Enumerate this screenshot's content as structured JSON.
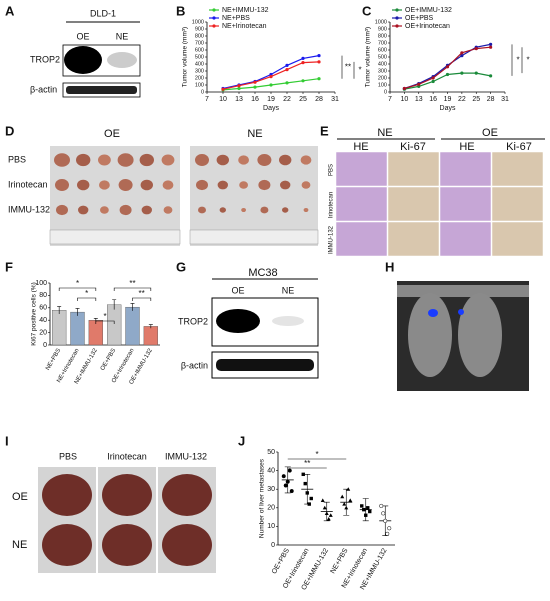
{
  "panel_letters": [
    "A",
    "B",
    "C",
    "D",
    "E",
    "F",
    "G",
    "H",
    "I",
    "J"
  ],
  "blot_a": {
    "header": "DLD-1",
    "lanes": [
      "OE",
      "NE"
    ],
    "rows": [
      "TROP2",
      "β-actin"
    ]
  },
  "panel_d": {
    "groups": [
      "OE",
      "NE"
    ],
    "rows": [
      "PBS",
      "Irinotecan",
      "IMMU-132"
    ]
  },
  "panel_e": {
    "groups": [
      "NE",
      "OE"
    ],
    "stains": [
      "HE",
      "Ki-67",
      "HE",
      "Ki-67"
    ],
    "rows": [
      "PBS",
      "Irinotecan",
      "IMMU-132"
    ]
  },
  "blot_g": {
    "header": "MC38",
    "lanes": [
      "OE",
      "NE"
    ],
    "rows": [
      "TROP2",
      "β-actin"
    ]
  },
  "panel_i": {
    "columns": [
      "PBS",
      "Irinotecan",
      "IMMU-132"
    ],
    "rows": [
      "OE",
      "NE"
    ]
  },
  "chart_data": [
    {
      "type": "line",
      "x_label": "Days",
      "y_label": "Tumor volume (mm³)",
      "x": [
        10,
        13,
        16,
        19,
        22,
        25,
        28
      ],
      "xlim": [
        7,
        31
      ],
      "xticks": [
        7,
        10,
        13,
        16,
        19,
        22,
        25,
        28,
        31
      ],
      "ylim": [
        0,
        1000
      ],
      "yticks": [
        0,
        100,
        200,
        300,
        400,
        500,
        600,
        700,
        800,
        900,
        1000
      ],
      "series": [
        {
          "name": "NE+IMMU-132",
          "color": "#33cc33",
          "values": [
            30,
            50,
            70,
            100,
            130,
            160,
            190
          ]
        },
        {
          "name": "NE+PBS",
          "color": "#1a1aee",
          "values": [
            50,
            100,
            150,
            250,
            380,
            480,
            520
          ]
        },
        {
          "name": "NE+Irinotecan",
          "color": "#ee2222",
          "values": [
            40,
            90,
            140,
            220,
            320,
            420,
            430
          ]
        }
      ],
      "annotations": [
        "**",
        "*"
      ]
    },
    {
      "type": "line",
      "x_label": "Days",
      "y_label": "Tumor volume (mm³)",
      "x": [
        10,
        13,
        16,
        19,
        22,
        25,
        28
      ],
      "xlim": [
        7,
        31
      ],
      "xticks": [
        7,
        10,
        13,
        16,
        19,
        22,
        25,
        28,
        31
      ],
      "ylim": [
        0,
        1000
      ],
      "yticks": [
        0,
        100,
        200,
        300,
        400,
        500,
        600,
        700,
        800,
        900,
        1000
      ],
      "series": [
        {
          "name": "OE+IMMU-132",
          "color": "#1a8a3a",
          "values": [
            40,
            80,
            150,
            250,
            270,
            270,
            230
          ]
        },
        {
          "name": "OE+PBS",
          "color": "#1a1aaa",
          "values": [
            50,
            120,
            220,
            380,
            520,
            640,
            680
          ]
        },
        {
          "name": "OE+Irinotecan",
          "color": "#aa1122",
          "values": [
            50,
            110,
            200,
            360,
            560,
            620,
            640
          ]
        }
      ],
      "annotations": [
        "*",
        "*"
      ]
    },
    {
      "type": "bar",
      "y_label": "Ki67 positive cells (%)",
      "categories": [
        "NE+PBS",
        "NE+Irinotecan",
        "NE+IMMU-132",
        "OE+PBS",
        "OE+Irinotecan",
        "OE+IMMU-132"
      ],
      "values": [
        56,
        53,
        40,
        65,
        61,
        30
      ],
      "errors": [
        6,
        6,
        3,
        8,
        6,
        3
      ],
      "colors": [
        "#c8c8c8",
        "#8fa9c8",
        "#e07a6a",
        "#c8c8c8",
        "#8fa9c8",
        "#e07a6a"
      ],
      "ylim": [
        0,
        100
      ],
      "yticks": [
        0,
        20,
        40,
        60,
        80,
        100
      ],
      "annotations": [
        "*",
        "*",
        "**",
        "**",
        "*"
      ]
    },
    {
      "type": "dot",
      "y_label": "Number of liver metastases",
      "categories": [
        "OE+PBS",
        "OE+Irinotecan",
        "OE+IMMU-132",
        "NE+PBS",
        "NE+Irinotecan",
        "NE+IMMU-132"
      ],
      "values": [
        35,
        30,
        18,
        23,
        19,
        13
      ],
      "errors": [
        7,
        8,
        5,
        7,
        6,
        8
      ],
      "points": [
        [
          37,
          32,
          34,
          40,
          29
        ],
        [
          38,
          33,
          28,
          22,
          25
        ],
        [
          24,
          20,
          17,
          14,
          16
        ],
        [
          26,
          22,
          20,
          30,
          24
        ],
        [
          21,
          19,
          16,
          20,
          18
        ],
        [
          21,
          17,
          13,
          6,
          9
        ]
      ],
      "ylim": [
        0,
        50
      ],
      "yticks": [
        0,
        10,
        20,
        30,
        40,
        50
      ],
      "annotations": [
        "**",
        "*"
      ]
    }
  ]
}
